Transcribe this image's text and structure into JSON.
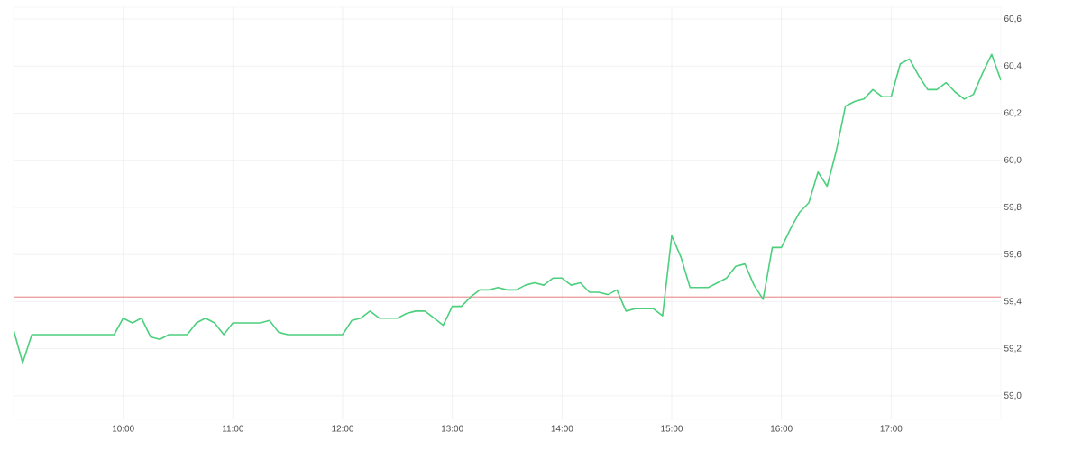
{
  "chart_data": {
    "type": "line",
    "x": [
      9,
      9.0833,
      9.1667,
      9.25,
      9.3333,
      9.4167,
      9.5,
      9.5833,
      9.6667,
      9.75,
      9.8333,
      9.9167,
      10,
      10.0833,
      10.1667,
      10.25,
      10.3333,
      10.4167,
      10.5,
      10.5833,
      10.6667,
      10.75,
      10.8333,
      10.9167,
      11,
      11.0833,
      11.1667,
      11.25,
      11.3333,
      11.4167,
      11.5,
      11.5833,
      11.6667,
      11.75,
      11.8333,
      11.9167,
      12,
      12.0833,
      12.1667,
      12.25,
      12.3333,
      12.4167,
      12.5,
      12.5833,
      12.6667,
      12.75,
      12.8333,
      12.9167,
      13,
      13.0833,
      13.1667,
      13.25,
      13.3333,
      13.4167,
      13.5,
      13.5833,
      13.6667,
      13.75,
      13.8333,
      13.9167,
      14,
      14.0833,
      14.1667,
      14.25,
      14.3333,
      14.4167,
      14.5,
      14.5833,
      14.6667,
      14.75,
      14.8333,
      14.9167,
      15,
      15.0833,
      15.1667,
      15.25,
      15.3333,
      15.4167,
      15.5,
      15.5833,
      15.6667,
      15.75,
      15.8333,
      15.9167,
      16,
      16.0833,
      16.1667,
      16.25,
      16.3333,
      16.4167,
      16.5,
      16.5833,
      16.6667,
      16.75,
      16.8333,
      16.9167,
      17,
      17.0833,
      17.1667,
      17.25,
      17.3333,
      17.4167,
      17.5,
      17.5833,
      17.6667,
      17.75,
      17.8333,
      17.9167,
      18
    ],
    "series": [
      {
        "color": "#4cd07d",
        "values": [
          59.28,
          59.14,
          59.26,
          59.26,
          59.26,
          59.26,
          59.26,
          59.26,
          59.26,
          59.26,
          59.26,
          59.26,
          59.33,
          59.31,
          59.33,
          59.25,
          59.24,
          59.26,
          59.26,
          59.26,
          59.31,
          59.33,
          59.31,
          59.26,
          59.31,
          59.31,
          59.31,
          59.31,
          59.32,
          59.27,
          59.26,
          59.26,
          59.26,
          59.26,
          59.26,
          59.26,
          59.26,
          59.32,
          59.33,
          59.36,
          59.33,
          59.33,
          59.33,
          59.35,
          59.36,
          59.36,
          59.33,
          59.3,
          59.38,
          59.38,
          59.42,
          59.45,
          59.45,
          59.46,
          59.45,
          59.45,
          59.47,
          59.48,
          59.47,
          59.5,
          59.5,
          59.47,
          59.48,
          59.44,
          59.44,
          59.43,
          59.45,
          59.36,
          59.37,
          59.37,
          59.37,
          59.34,
          59.68,
          59.59,
          59.46,
          59.46,
          59.46,
          59.48,
          59.5,
          59.55,
          59.56,
          59.47,
          59.41,
          59.63,
          59.63,
          59.71,
          59.78,
          59.82,
          59.95,
          59.89,
          60.04,
          60.23,
          60.25,
          60.26,
          60.3,
          60.27,
          60.27,
          60.41,
          60.43,
          60.36,
          60.3,
          60.3,
          60.33,
          60.29,
          60.26,
          60.28,
          60.37,
          60.45,
          60.34
        ]
      }
    ],
    "xlim": [
      9,
      18
    ],
    "ylim": [
      58.9,
      60.65
    ],
    "xticks": [
      {
        "value": 10,
        "label": "10:00"
      },
      {
        "value": 11,
        "label": "11:00"
      },
      {
        "value": 12,
        "label": "12:00"
      },
      {
        "value": 13,
        "label": "13:00"
      },
      {
        "value": 14,
        "label": "14:00"
      },
      {
        "value": 15,
        "label": "15:00"
      },
      {
        "value": 16,
        "label": "16:00"
      },
      {
        "value": 17,
        "label": "17:00"
      }
    ],
    "yticks": [
      {
        "value": 59.0,
        "label": "59,0"
      },
      {
        "value": 59.2,
        "label": "59,2"
      },
      {
        "value": 59.4,
        "label": "59,4"
      },
      {
        "value": 59.6,
        "label": "59,6"
      },
      {
        "value": 59.8,
        "label": "59,8"
      },
      {
        "value": 60.0,
        "label": "60,0"
      },
      {
        "value": 60.2,
        "label": "60,2"
      },
      {
        "value": 60.4,
        "label": "60,4"
      },
      {
        "value": 60.6,
        "label": "60,6"
      }
    ],
    "ref_lines": [
      {
        "axis": "y",
        "value": 59.42,
        "color": "#e06060"
      }
    ],
    "grid": true,
    "marker": "none",
    "line_style": "solid"
  }
}
